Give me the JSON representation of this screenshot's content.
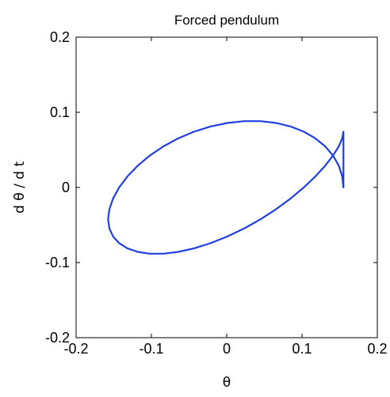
{
  "chart_data": {
    "type": "line",
    "title": "Forced pendulum",
    "xlabel": "θ",
    "ylabel": "d θ / d t",
    "xlim": [
      -0.2,
      0.2
    ],
    "ylim": [
      -0.2,
      0.2
    ],
    "xticks": [
      -0.2,
      -0.1,
      0,
      0.1,
      0.2
    ],
    "xtick_labels": [
      "-0.2",
      "-0.1",
      "0",
      "0.1",
      "0.2"
    ],
    "yticks": [
      -0.2,
      -0.1,
      0,
      0.1,
      0.2
    ],
    "ytick_labels": [
      "-0.2",
      "-0.1",
      "0",
      "0.1",
      "0.2"
    ],
    "grid": false,
    "series": [
      {
        "color": "#1f3fe0",
        "x": [
          0.155,
          0.1534,
          0.1488,
          0.1412,
          0.1308,
          0.1178,
          0.1024,
          0.0849,
          0.0656,
          0.0449,
          0.0232,
          0.0009,
          -0.0215,
          -0.0434,
          -0.0644,
          -0.0841,
          -0.1021,
          -0.1181,
          -0.1318,
          -0.1428,
          -0.1509,
          -0.1558,
          -0.1575,
          -0.1558,
          -0.1509,
          -0.1428,
          -0.1318,
          -0.1181,
          -0.1021,
          -0.0841,
          -0.0644,
          -0.0434,
          -0.0215,
          0.0009,
          0.0232,
          0.0449,
          0.0656,
          0.0849,
          0.1024,
          0.1178,
          0.1308,
          0.1412,
          0.1488,
          0.1534,
          0.155
        ],
        "y": [
          0.0,
          0.0147,
          0.029,
          0.0424,
          0.0546,
          0.0653,
          0.0742,
          0.0811,
          0.0858,
          0.0882,
          0.0882,
          0.0858,
          0.0811,
          0.0742,
          0.0653,
          0.0546,
          0.0424,
          0.029,
          0.0147,
          0.0,
          -0.0147,
          -0.029,
          -0.0424,
          -0.0546,
          -0.0653,
          -0.0742,
          -0.0811,
          -0.0858,
          -0.0882,
          -0.0882,
          -0.0858,
          -0.0811,
          -0.0742,
          -0.0653,
          -0.0546,
          -0.0424,
          -0.029,
          -0.0147,
          0.0,
          0.0147,
          0.029,
          0.0424,
          0.0546,
          0.0653,
          0.0742
        ]
      }
    ]
  }
}
